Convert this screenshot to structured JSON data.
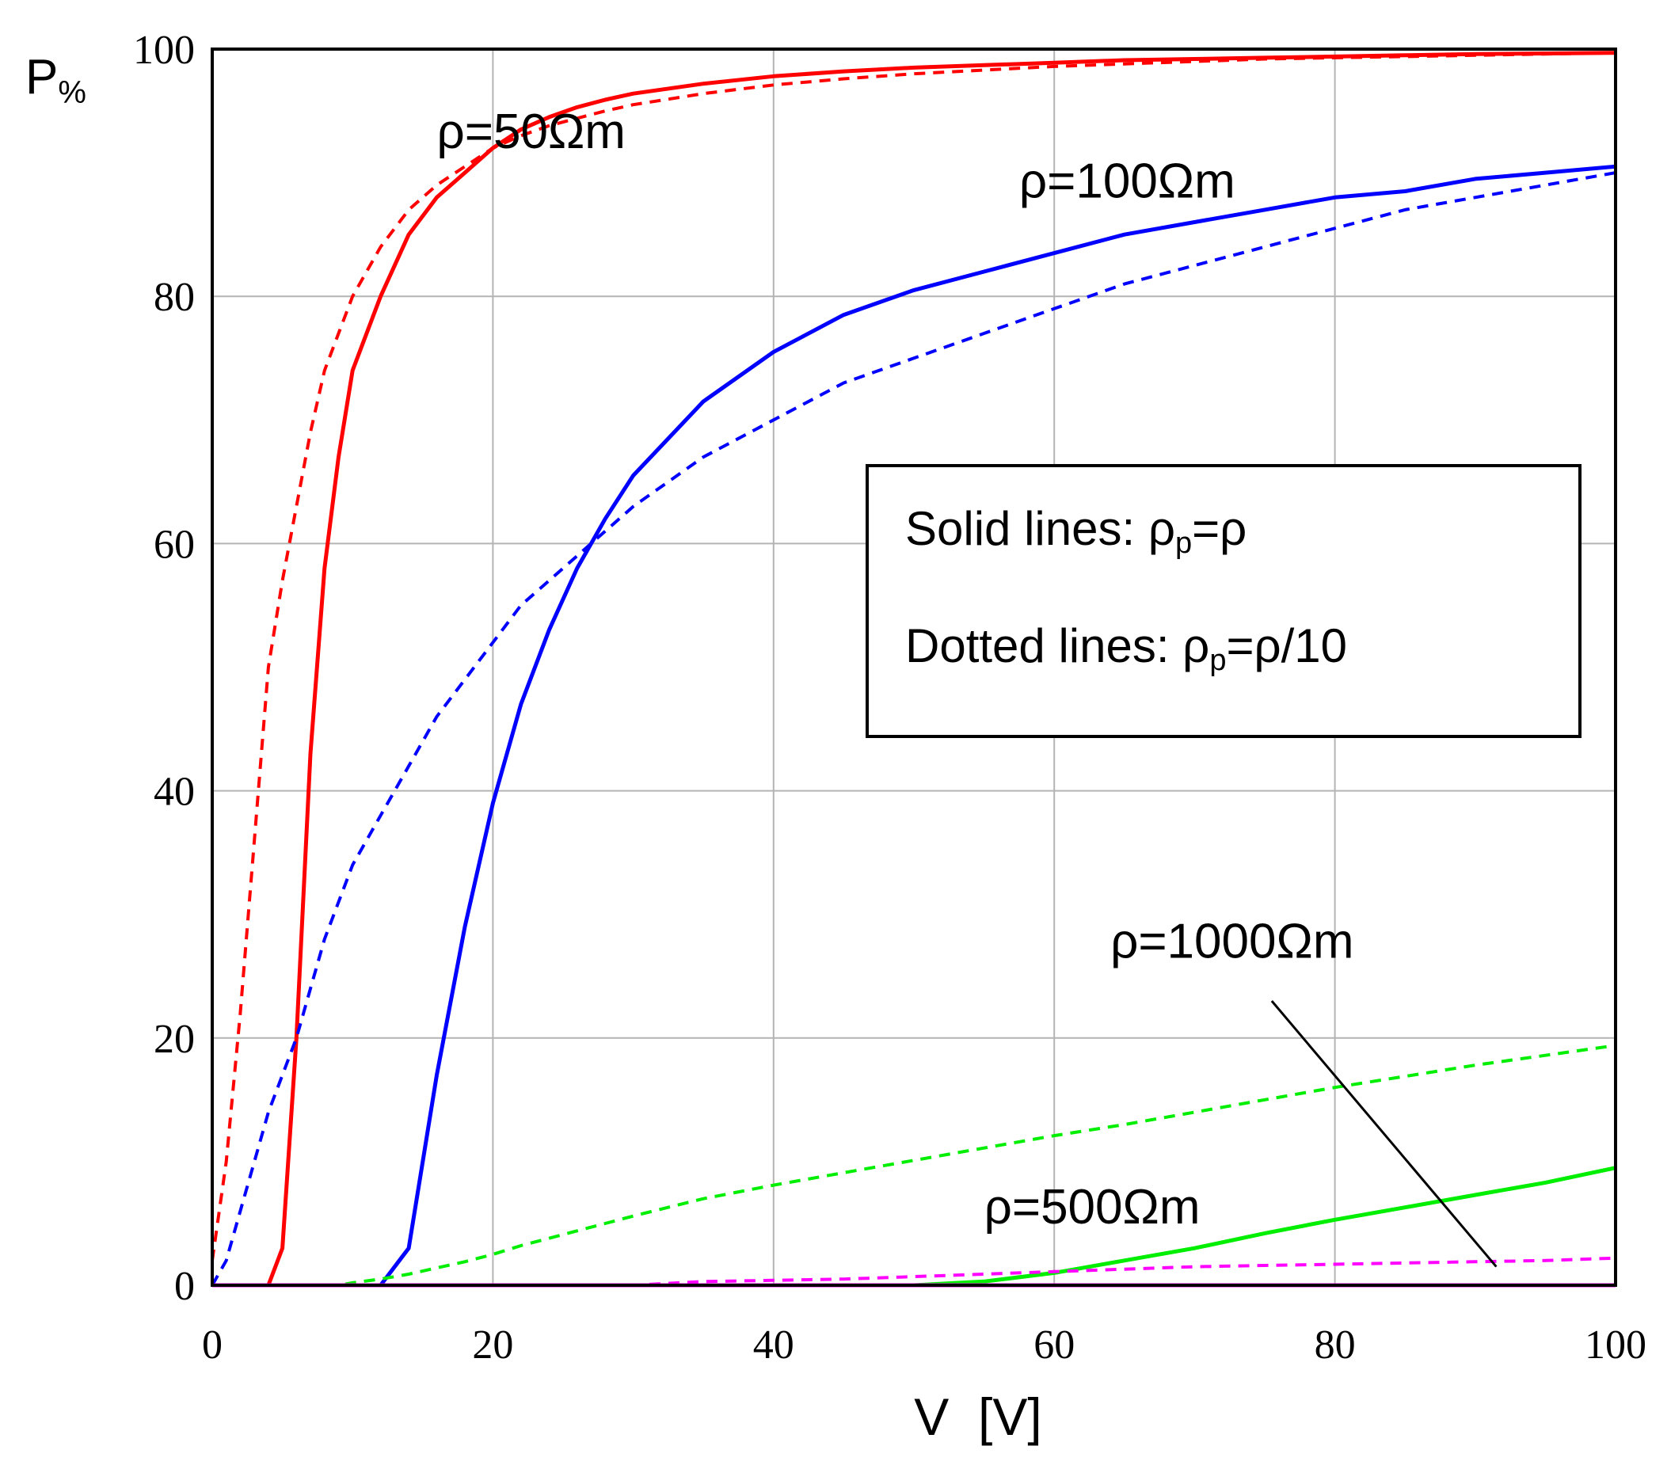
{
  "chart_data": {
    "type": "line",
    "title": "",
    "xlabel": "V  [V]",
    "ylabel": {
      "main": "P",
      "sub": "%"
    },
    "xlim": [
      0,
      100
    ],
    "ylim": [
      0,
      100
    ],
    "x_ticks": [
      0,
      20,
      40,
      60,
      80,
      100
    ],
    "y_ticks": [
      0,
      20,
      40,
      60,
      80,
      100
    ],
    "grid": true,
    "x": [
      0,
      1,
      2,
      3,
      4,
      5,
      6,
      7,
      8,
      9,
      10,
      12,
      14,
      16,
      18,
      20,
      22,
      24,
      26,
      28,
      30,
      35,
      40,
      45,
      50,
      55,
      60,
      65,
      70,
      75,
      80,
      85,
      90,
      95,
      100
    ],
    "series": [
      {
        "name": "ρ=50Ωm solid (ρp=ρ)",
        "color": "#ff0000",
        "style": "solid",
        "values": [
          0,
          0,
          0,
          0,
          0,
          3,
          20,
          43,
          58,
          67,
          74,
          80,
          85,
          88,
          90,
          92,
          93.5,
          94.5,
          95.3,
          95.9,
          96.4,
          97.2,
          97.8,
          98.2,
          98.5,
          98.7,
          98.9,
          99.1,
          99.2,
          99.3,
          99.4,
          99.5,
          99.6,
          99.65,
          99.7
        ]
      },
      {
        "name": "ρ=50Ωm dotted (ρp=ρ/10)",
        "color": "#ff0000",
        "style": "dotted",
        "values": [
          2,
          10,
          22,
          36,
          50,
          57,
          63,
          69,
          74,
          77,
          80,
          84,
          87,
          89,
          90.5,
          92,
          93,
          93.8,
          94.4,
          95,
          95.5,
          96.4,
          97.1,
          97.6,
          98,
          98.3,
          98.6,
          98.8,
          99,
          99.2,
          99.3,
          99.4,
          99.5,
          99.6,
          99.7
        ]
      },
      {
        "name": "ρ=100Ωm solid (ρp=ρ)",
        "color": "#0000ff",
        "style": "solid",
        "values": [
          0,
          0,
          0,
          0,
          0,
          0,
          0,
          0,
          0,
          0,
          0,
          0,
          3,
          17,
          29,
          39,
          47,
          53,
          58,
          62,
          65.5,
          71.5,
          75.5,
          78.5,
          80.5,
          82,
          83.5,
          85,
          86,
          87,
          88,
          88.5,
          89.5,
          90,
          90.5
        ]
      },
      {
        "name": "ρ=100Ωm dotted (ρp=ρ/10)",
        "color": "#0000ff",
        "style": "dotted",
        "values": [
          0,
          2,
          6,
          10,
          14,
          17,
          20,
          24,
          28,
          31,
          34,
          38,
          42,
          46,
          49,
          52,
          55,
          57,
          59,
          61,
          63,
          67,
          70,
          73,
          75,
          77,
          79,
          81,
          82.5,
          84,
          85.5,
          87,
          88,
          89,
          90
        ]
      },
      {
        "name": "ρ=500Ωm solid (ρp=ρ)",
        "color": "#00ee00",
        "style": "solid",
        "values": [
          0,
          0,
          0,
          0,
          0,
          0,
          0,
          0,
          0,
          0,
          0,
          0,
          0,
          0,
          0,
          0,
          0,
          0,
          0,
          0,
          0,
          0,
          0,
          0,
          0,
          0.3,
          1,
          2,
          3,
          4.2,
          5.3,
          6.3,
          7.3,
          8.3,
          9.5
        ]
      },
      {
        "name": "ρ=500Ωm dotted (ρp=ρ/10)",
        "color": "#00ee00",
        "style": "dotted",
        "values": [
          0,
          0,
          0,
          0,
          0,
          0,
          0,
          0,
          0,
          0,
          0.2,
          0.5,
          0.9,
          1.4,
          1.9,
          2.5,
          3.2,
          3.8,
          4.4,
          5,
          5.6,
          7,
          8.1,
          9.1,
          10.1,
          11.1,
          12.1,
          13,
          14,
          15,
          16,
          16.9,
          17.8,
          18.6,
          19.4
        ]
      },
      {
        "name": "ρ=1000Ωm solid (ρp=ρ)",
        "color": "#ff00ff",
        "style": "solid",
        "values": [
          0,
          0,
          0,
          0,
          0,
          0,
          0,
          0,
          0,
          0,
          0,
          0,
          0,
          0,
          0,
          0,
          0,
          0,
          0,
          0,
          0,
          0,
          0,
          0,
          0,
          0,
          0,
          0,
          0,
          0,
          0,
          0,
          0,
          0,
          0
        ]
      },
      {
        "name": "ρ=1000Ωm dotted (ρp=ρ/10)",
        "color": "#ff00ff",
        "style": "dotted",
        "values": [
          0,
          0,
          0,
          0,
          0,
          0,
          0,
          0,
          0,
          0,
          0,
          0,
          0,
          0,
          0,
          0,
          0,
          0,
          0,
          0,
          0,
          0.3,
          0.4,
          0.5,
          0.7,
          0.9,
          1.1,
          1.3,
          1.5,
          1.6,
          1.7,
          1.8,
          1.9,
          2,
          2.2
        ]
      }
    ],
    "annotations": [
      {
        "text": "ρ=50Ωm",
        "x": 16,
        "y": 92
      },
      {
        "text": "ρ=100Ωm",
        "x": 57.5,
        "y": 88
      },
      {
        "text": "ρ=1000Ωm",
        "x": 64,
        "y": 26.5
      },
      {
        "text": "ρ=500Ωm",
        "x": 55,
        "y": 5
      }
    ],
    "leader_line": {
      "from": [
        75.5,
        23
      ],
      "to": [
        91.5,
        1.5
      ]
    },
    "legend": {
      "placement": "center-right",
      "lines": [
        {
          "prefix": "Solid lines: ρ",
          "sub": "p",
          "suffix": "=ρ"
        },
        {
          "prefix": "Dotted lines: ρ",
          "sub": "p",
          "suffix": "=ρ/10"
        }
      ]
    }
  }
}
